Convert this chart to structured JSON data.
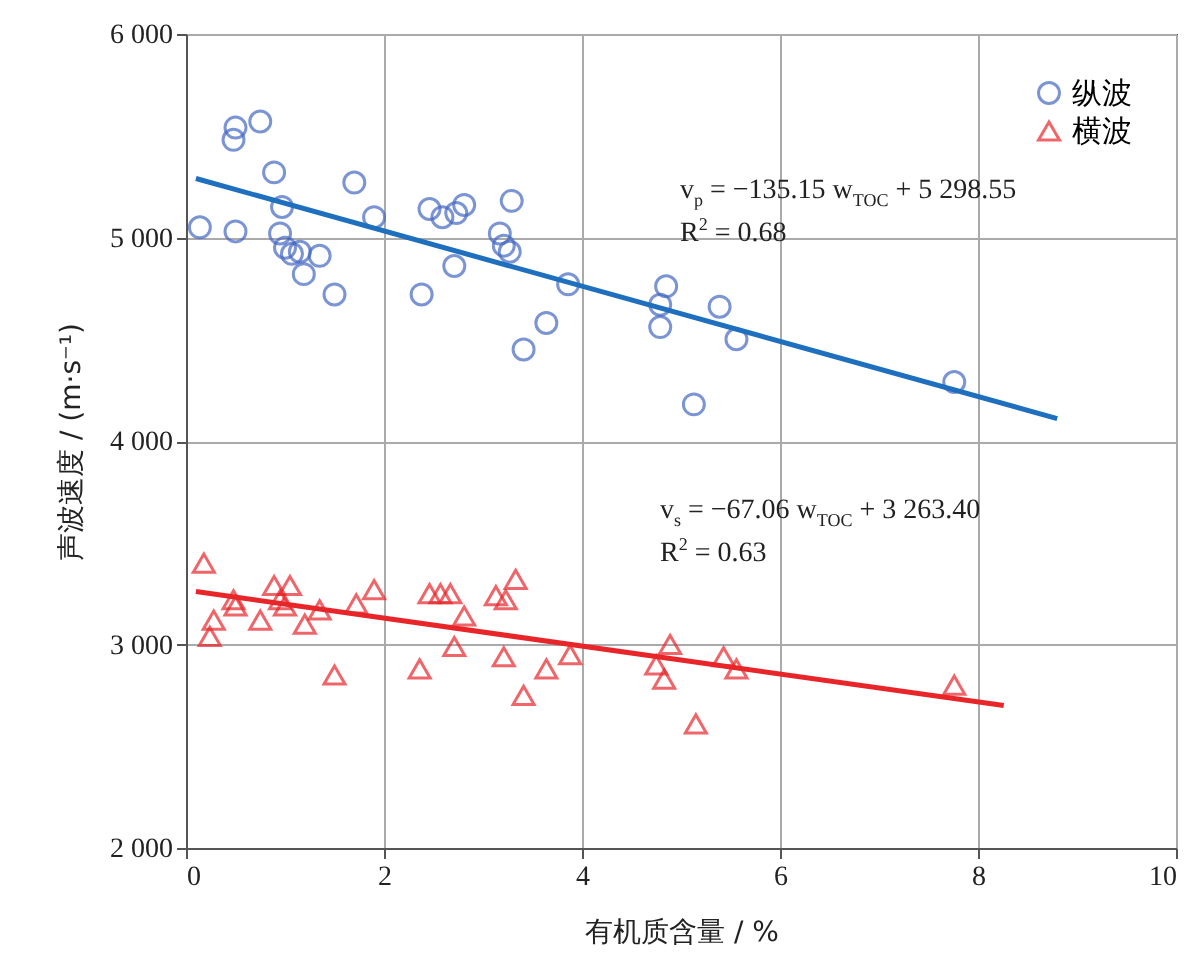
{
  "chart_data": {
    "type": "scatter",
    "xlabel": "有机质含量 / %",
    "ylabel": "声波速度 / (m·s⁻¹)",
    "xlim": [
      0,
      10
    ],
    "xticks": [
      0,
      2,
      4,
      6,
      8,
      10
    ],
    "ylim": [
      2000,
      6000
    ],
    "yticks": [
      {
        "value": 2000,
        "label": "2 000"
      },
      {
        "value": 3000,
        "label": "3 000"
      },
      {
        "value": 4000,
        "label": "4 000"
      },
      {
        "value": 5000,
        "label": "5 000"
      },
      {
        "value": 6000,
        "label": "6 000"
      }
    ],
    "grid": true,
    "legend": "top right",
    "series": [
      {
        "name": "纵波",
        "marker": "circle",
        "color": "#4468c2",
        "x": [
          0.14,
          0.5,
          0.48,
          0.75,
          0.5,
          0.89,
          0.97,
          0.95,
          1.0,
          1.07,
          1.15,
          1.35,
          1.19,
          1.5,
          1.7,
          1.9,
          2.38,
          2.46,
          2.59,
          2.73,
          2.81,
          2.71,
          3.29,
          3.17,
          3.21,
          3.27,
          3.86,
          3.41,
          3.64,
          4.85,
          4.79,
          4.79,
          5.39,
          5.56,
          5.13,
          7.76
        ],
        "values": [
          5050,
          5540,
          5480,
          5570,
          5030,
          5320,
          5150,
          5020,
          4950,
          4920,
          4930,
          4910,
          4820,
          4720,
          5270,
          5100,
          4720,
          5140,
          5100,
          5120,
          5160,
          4860,
          5180,
          5020,
          4960,
          4930,
          4770,
          4450,
          4580,
          4760,
          4670,
          4560,
          4660,
          4500,
          4180,
          4290
        ]
      },
      {
        "name": "横波",
        "marker": "triangle",
        "color": "#e8262a",
        "x": [
          0.18,
          0.24,
          0.28,
          0.48,
          0.5,
          0.75,
          0.89,
          1.05,
          0.95,
          1.0,
          1.2,
          1.35,
          1.5,
          1.72,
          1.9,
          2.36,
          2.46,
          2.57,
          2.67,
          2.81,
          2.71,
          3.21,
          3.13,
          3.23,
          3.33,
          3.41,
          3.64,
          3.88,
          4.89,
          4.75,
          4.83,
          5.15,
          5.43,
          5.56,
          7.76
        ],
        "values": [
          3400,
          3040,
          3120,
          3220,
          3190,
          3120,
          3290,
          3290,
          3220,
          3190,
          3100,
          3170,
          2850,
          3200,
          3270,
          2880,
          3250,
          3250,
          3250,
          3140,
          2990,
          2940,
          3240,
          3220,
          3320,
          2750,
          2880,
          2950,
          3000,
          2900,
          2830,
          2610,
          2940,
          2880,
          2800
        ]
      },
      {
        "type": "line",
        "color": "#1f6fbf",
        "x": [
          0.1,
          8.8
        ],
        "values": [
          5290,
          4110
        ]
      },
      {
        "type": "line",
        "color": "#e8262a",
        "x": [
          0.1,
          8.26
        ],
        "values": [
          3260,
          2700
        ]
      }
    ],
    "annotations": [
      "v$_{p}$ = −135.15 w$_{TOC}$ + 5 298.55",
      "R$^{2}$ = 0.68",
      "v$_{s}$ = −67.06 w$_{TOC}$ + 3 263.40",
      "R$^{2}$ = 0.63"
    ]
  }
}
